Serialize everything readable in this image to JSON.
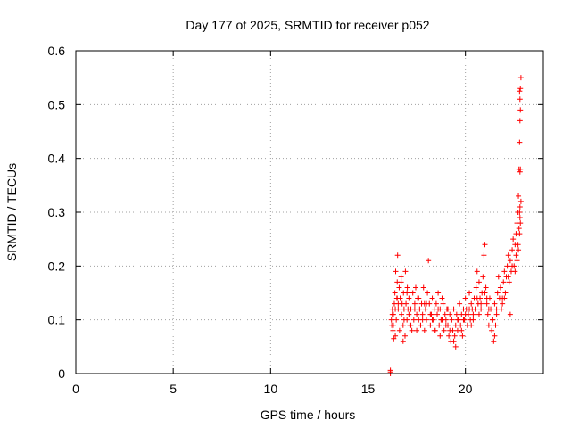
{
  "chart_data": {
    "type": "scatter",
    "title": "Day 177 of 2025, SRMTID for receiver p052",
    "xlabel": "GPS time / hours",
    "ylabel": "SRMTID / TECUs",
    "xlim": [
      0,
      24
    ],
    "ylim": [
      0,
      0.6
    ],
    "xticks": [
      0,
      5,
      10,
      15,
      20
    ],
    "xtick_labels": [
      "0",
      "5",
      "10",
      "15",
      "20"
    ],
    "yticks": [
      0,
      0.1,
      0.2,
      0.3,
      0.4,
      0.5,
      0.6
    ],
    "ytick_labels": [
      "0",
      "0.1",
      "0.2",
      "0.3",
      "0.4",
      "0.5",
      "0.6"
    ],
    "grid": true,
    "marker": "+",
    "series": [
      {
        "name": "SRMTID p052",
        "color": "#ff0000",
        "x": [
          16.15,
          16.15,
          16.15,
          16.2,
          16.22,
          16.25,
          16.28,
          16.3,
          16.32,
          16.35,
          16.38,
          16.4,
          16.42,
          16.45,
          16.48,
          16.5,
          16.52,
          16.55,
          16.6,
          16.62,
          16.65,
          16.7,
          16.72,
          16.75,
          16.8,
          16.82,
          16.85,
          16.9,
          16.92,
          16.95,
          17.0,
          17.02,
          17.05,
          17.1,
          17.15,
          17.2,
          17.25,
          17.3,
          17.35,
          17.4,
          17.45,
          17.5,
          17.55,
          17.6,
          17.65,
          17.7,
          17.75,
          17.8,
          17.85,
          17.9,
          17.95,
          18.0,
          18.05,
          18.1,
          18.15,
          18.2,
          18.25,
          18.3,
          18.35,
          18.4,
          18.45,
          18.5,
          18.55,
          18.6,
          18.65,
          18.7,
          18.75,
          18.8,
          18.85,
          18.9,
          18.95,
          19.0,
          19.05,
          19.1,
          19.15,
          19.2,
          19.25,
          19.3,
          19.35,
          19.4,
          19.45,
          19.5,
          19.55,
          19.6,
          19.65,
          19.7,
          19.75,
          19.8,
          19.85,
          19.9,
          19.95,
          20.0,
          20.05,
          20.1,
          20.15,
          20.2,
          20.25,
          20.3,
          20.35,
          20.4,
          20.45,
          20.5,
          20.55,
          20.6,
          20.65,
          20.7,
          20.75,
          20.8,
          20.85,
          20.9,
          20.95,
          21.0,
          21.05,
          21.1,
          21.15,
          21.2,
          21.25,
          21.3,
          21.35,
          21.4,
          21.45,
          21.5,
          21.55,
          21.6,
          21.65,
          21.7,
          21.75,
          21.8,
          21.85,
          21.9,
          21.95,
          22.0,
          22.05,
          22.1,
          22.15,
          22.2,
          22.25,
          22.3,
          22.35,
          22.4,
          22.45,
          22.5,
          22.55,
          22.6,
          22.65,
          22.7,
          22.72,
          22.75,
          22.78,
          22.8,
          22.82,
          22.85,
          16.25,
          16.4,
          16.55,
          16.7,
          16.85,
          17.0,
          17.2,
          17.4,
          17.6,
          17.8,
          18.0,
          18.2,
          18.4,
          18.6,
          18.8,
          19.0,
          19.2,
          19.4,
          19.6,
          19.8,
          20.0,
          20.2,
          20.4,
          20.6,
          20.8,
          21.0,
          21.2,
          21.4,
          21.6,
          21.8,
          22.0,
          22.2,
          22.4,
          22.6,
          22.7,
          22.75,
          22.8,
          22.85,
          16.3,
          16.5,
          16.8,
          17.1,
          17.5,
          17.9,
          18.3,
          18.7,
          19.1,
          19.5,
          19.9,
          20.3,
          20.7,
          21.1,
          21.5,
          21.9,
          22.3,
          22.55,
          22.65,
          22.72,
          22.78,
          22.82,
          22.8,
          22.82,
          22.78,
          22.8,
          22.82,
          22.78,
          22.8
        ],
        "y": [
          0.0,
          0.003,
          0.006,
          0.1,
          0.09,
          0.12,
          0.08,
          0.11,
          0.065,
          0.13,
          0.15,
          0.12,
          0.19,
          0.1,
          0.14,
          0.17,
          0.22,
          0.12,
          0.16,
          0.08,
          0.14,
          0.18,
          0.11,
          0.13,
          0.09,
          0.15,
          0.12,
          0.07,
          0.19,
          0.13,
          0.1,
          0.16,
          0.12,
          0.14,
          0.09,
          0.12,
          0.08,
          0.15,
          0.1,
          0.13,
          0.16,
          0.11,
          0.14,
          0.1,
          0.12,
          0.09,
          0.13,
          0.11,
          0.16,
          0.08,
          0.12,
          0.1,
          0.15,
          0.21,
          0.13,
          0.09,
          0.11,
          0.14,
          0.1,
          0.12,
          0.08,
          0.13,
          0.11,
          0.15,
          0.09,
          0.12,
          0.1,
          0.14,
          0.13,
          0.08,
          0.11,
          0.1,
          0.12,
          0.09,
          0.07,
          0.11,
          0.06,
          0.1,
          0.08,
          0.12,
          0.07,
          0.09,
          0.11,
          0.08,
          0.1,
          0.13,
          0.09,
          0.11,
          0.07,
          0.12,
          0.1,
          0.14,
          0.12,
          0.09,
          0.11,
          0.15,
          0.1,
          0.13,
          0.12,
          0.11,
          0.14,
          0.12,
          0.16,
          0.19,
          0.13,
          0.17,
          0.14,
          0.12,
          0.15,
          0.18,
          0.22,
          0.24,
          0.16,
          0.13,
          0.11,
          0.09,
          0.14,
          0.12,
          0.08,
          0.1,
          0.06,
          0.13,
          0.09,
          0.12,
          0.15,
          0.18,
          0.14,
          0.16,
          0.12,
          0.14,
          0.17,
          0.19,
          0.15,
          0.18,
          0.2,
          0.22,
          0.17,
          0.21,
          0.19,
          0.23,
          0.25,
          0.2,
          0.24,
          0.26,
          0.28,
          0.3,
          0.33,
          0.38,
          0.43,
          0.47,
          0.49,
          0.55,
          0.11,
          0.07,
          0.13,
          0.17,
          0.1,
          0.15,
          0.09,
          0.12,
          0.14,
          0.1,
          0.13,
          0.11,
          0.08,
          0.12,
          0.1,
          0.09,
          0.08,
          0.06,
          0.1,
          0.08,
          0.11,
          0.12,
          0.1,
          0.14,
          0.13,
          0.15,
          0.12,
          0.1,
          0.11,
          0.16,
          0.14,
          0.18,
          0.2,
          0.22,
          0.24,
          0.27,
          0.29,
          0.32,
          0.09,
          0.14,
          0.06,
          0.11,
          0.08,
          0.13,
          0.1,
          0.07,
          0.12,
          0.05,
          0.1,
          0.09,
          0.11,
          0.14,
          0.07,
          0.13,
          0.11,
          0.19,
          0.21,
          0.23,
          0.26,
          0.28,
          0.375,
          0.38,
          0.525,
          0.51,
          0.53,
          0.3,
          0.31
        ]
      }
    ]
  }
}
